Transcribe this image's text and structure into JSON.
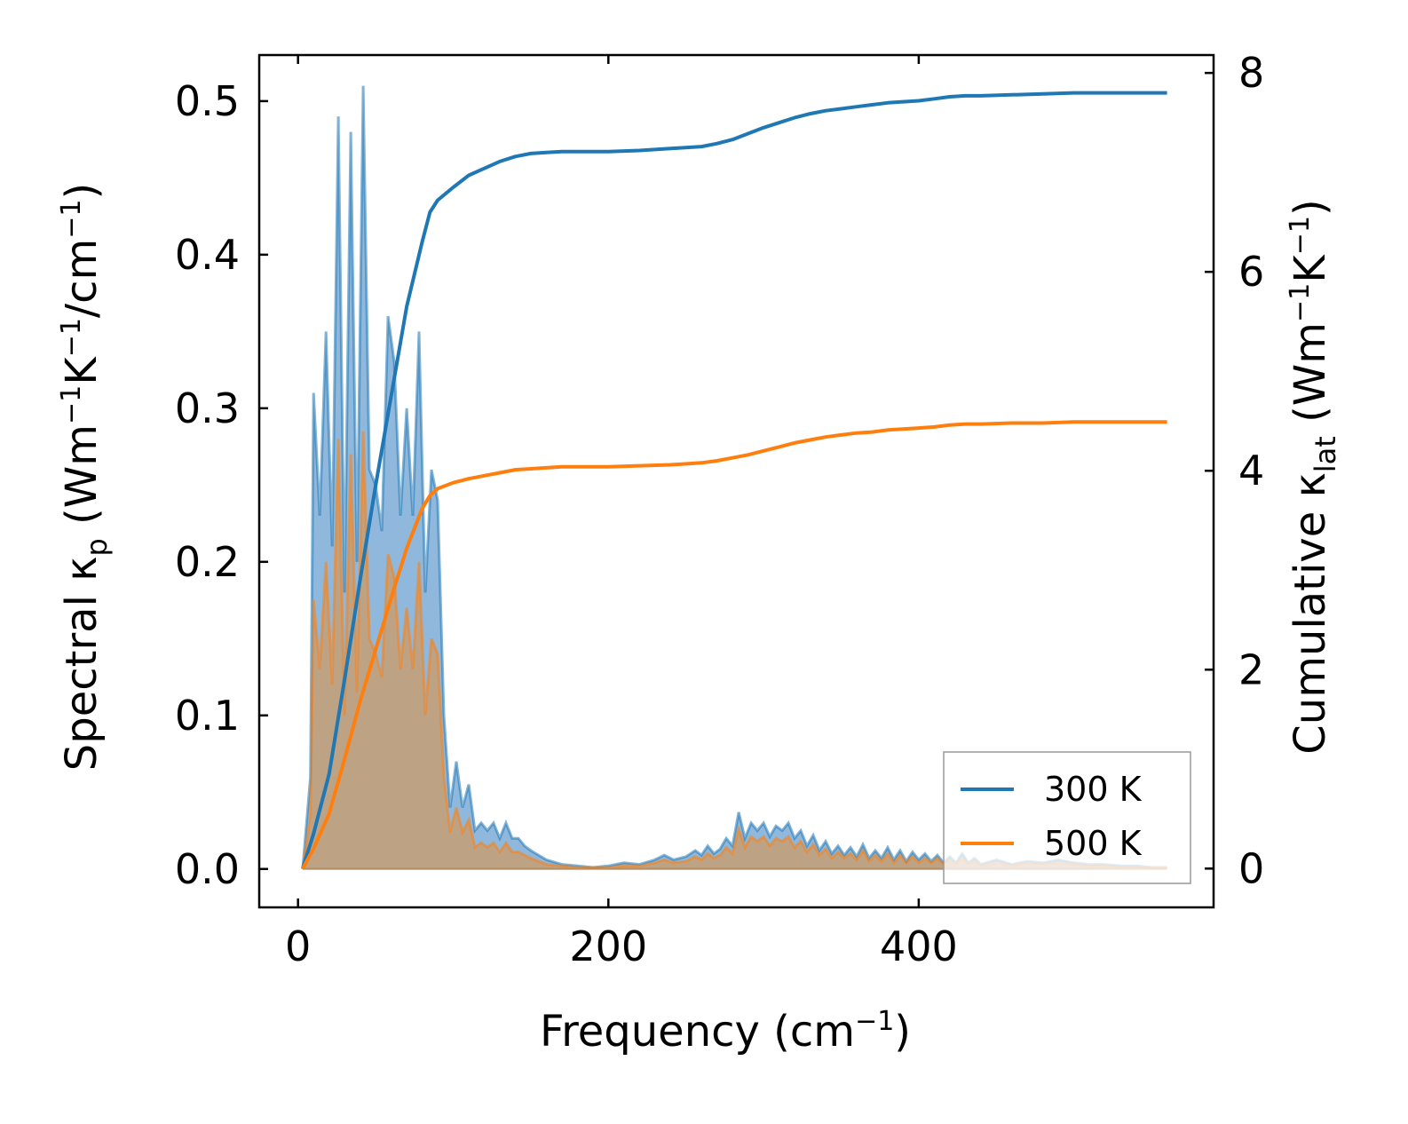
{
  "chart_data": {
    "type": "line",
    "title": "",
    "xlabel": "Frequency (cm⁻¹)",
    "xlabel_parts": {
      "main": "Frequency (cm",
      "sup": "−1",
      "close": ")"
    },
    "ylabel_left": "Spectral κₚ (Wm⁻¹K⁻¹/cm⁻¹)",
    "ylabel_left_parts": {
      "a": "Spectral κ",
      "sub": "p",
      "b": " (Wm",
      "sup1": "−1",
      "c": "K",
      "sup2": "−1",
      "d": "/cm",
      "sup3": "−1",
      "e": ")"
    },
    "ylabel_right": "Cumulative κ_lat (Wm⁻¹K⁻¹)",
    "ylabel_right_parts": {
      "a": "Cumulative κ",
      "sub": "lat",
      "b": " (Wm",
      "sup1": "−1",
      "c": "K",
      "sup2": "−1",
      "d": ")"
    },
    "xlim": [
      -25,
      590
    ],
    "ylim_left": [
      -0.025,
      0.53
    ],
    "ylim_right": [
      -0.39,
      8.18
    ],
    "xticks": [
      0,
      200,
      400
    ],
    "xtick_labels": [
      "0",
      "200",
      "400"
    ],
    "yticks_left": [
      0.0,
      0.1,
      0.2,
      0.3,
      0.4,
      0.5
    ],
    "ytick_labels_left": [
      "0.0",
      "0.1",
      "0.2",
      "0.3",
      "0.4",
      "0.5"
    ],
    "yticks_right": [
      0,
      2,
      4,
      6,
      8
    ],
    "ytick_labels_right": [
      "0",
      "2",
      "4",
      "6",
      "8"
    ],
    "legend": {
      "position": "lower-right",
      "entries": [
        "300 K",
        "500 K"
      ]
    },
    "colors": {
      "s300": "#1f77b4",
      "s500": "#ff7f0e",
      "fill300": "#8fb8dc",
      "fill500": "#c79d74"
    },
    "spectral": [
      {
        "name": "300 K",
        "x": [
          3,
          8,
          10,
          14,
          18,
          22,
          26,
          30,
          34,
          38,
          42,
          46,
          50,
          54,
          58,
          62,
          66,
          70,
          74,
          78,
          82,
          86,
          90,
          94,
          98,
          102,
          106,
          110,
          114,
          118,
          122,
          126,
          130,
          134,
          138,
          142,
          146,
          150,
          160,
          170,
          180,
          190,
          200,
          210,
          220,
          230,
          236,
          242,
          250,
          256,
          260,
          264,
          268,
          272,
          276,
          280,
          284,
          288,
          292,
          296,
          300,
          304,
          308,
          312,
          316,
          320,
          324,
          328,
          332,
          336,
          340,
          344,
          348,
          352,
          356,
          360,
          364,
          368,
          372,
          376,
          380,
          384,
          388,
          392,
          396,
          400,
          404,
          408,
          412,
          416,
          420,
          424,
          428,
          432,
          436,
          440,
          450,
          460,
          470,
          480,
          490,
          500,
          510,
          520,
          530,
          540,
          550,
          560
        ],
        "y": [
          0.0,
          0.06,
          0.31,
          0.23,
          0.35,
          0.21,
          0.49,
          0.18,
          0.48,
          0.2,
          0.51,
          0.26,
          0.25,
          0.22,
          0.36,
          0.33,
          0.23,
          0.3,
          0.23,
          0.35,
          0.18,
          0.26,
          0.24,
          0.1,
          0.04,
          0.07,
          0.04,
          0.055,
          0.025,
          0.03,
          0.025,
          0.03,
          0.02,
          0.03,
          0.02,
          0.02,
          0.015,
          0.012,
          0.006,
          0.003,
          0.002,
          0.001,
          0.002,
          0.004,
          0.003,
          0.006,
          0.009,
          0.006,
          0.008,
          0.012,
          0.009,
          0.015,
          0.01,
          0.013,
          0.02,
          0.015,
          0.037,
          0.02,
          0.03,
          0.025,
          0.03,
          0.021,
          0.028,
          0.025,
          0.03,
          0.02,
          0.025,
          0.015,
          0.022,
          0.012,
          0.018,
          0.01,
          0.015,
          0.009,
          0.014,
          0.008,
          0.016,
          0.007,
          0.012,
          0.007,
          0.014,
          0.006,
          0.012,
          0.005,
          0.011,
          0.006,
          0.01,
          0.005,
          0.009,
          0.004,
          0.008,
          0.004,
          0.01,
          0.004,
          0.007,
          0.003,
          0.006,
          0.003,
          0.005,
          0.004,
          0.006,
          0.004,
          0.003,
          0.003,
          0.002,
          0.002,
          0.001,
          0.001
        ]
      },
      {
        "name": "500 K",
        "x": [
          3,
          8,
          10,
          14,
          18,
          22,
          26,
          30,
          34,
          38,
          42,
          46,
          50,
          54,
          58,
          62,
          66,
          70,
          74,
          78,
          82,
          86,
          90,
          94,
          98,
          102,
          106,
          110,
          114,
          118,
          122,
          126,
          130,
          134,
          138,
          142,
          146,
          150,
          160,
          170,
          180,
          190,
          200,
          210,
          220,
          230,
          236,
          242,
          250,
          256,
          260,
          264,
          268,
          272,
          276,
          280,
          284,
          288,
          292,
          296,
          300,
          304,
          308,
          312,
          316,
          320,
          324,
          328,
          332,
          336,
          340,
          344,
          348,
          352,
          356,
          360,
          364,
          368,
          372,
          376,
          380,
          384,
          388,
          392,
          396,
          400,
          404,
          408,
          412,
          416,
          420,
          424,
          428,
          432,
          436,
          440,
          450,
          460,
          470,
          480,
          490,
          500,
          510,
          520,
          530,
          540,
          550,
          560
        ],
        "y": [
          0.0,
          0.035,
          0.175,
          0.13,
          0.2,
          0.12,
          0.28,
          0.1,
          0.27,
          0.115,
          0.285,
          0.15,
          0.14,
          0.125,
          0.205,
          0.19,
          0.13,
          0.17,
          0.13,
          0.2,
          0.1,
          0.15,
          0.14,
          0.06,
          0.024,
          0.04,
          0.024,
          0.032,
          0.014,
          0.017,
          0.014,
          0.017,
          0.011,
          0.017,
          0.011,
          0.011,
          0.009,
          0.007,
          0.003,
          0.002,
          0.001,
          0.001,
          0.001,
          0.002,
          0.002,
          0.004,
          0.006,
          0.004,
          0.005,
          0.008,
          0.006,
          0.01,
          0.007,
          0.009,
          0.014,
          0.01,
          0.026,
          0.014,
          0.021,
          0.018,
          0.021,
          0.015,
          0.02,
          0.018,
          0.021,
          0.014,
          0.018,
          0.011,
          0.016,
          0.009,
          0.013,
          0.007,
          0.011,
          0.007,
          0.01,
          0.006,
          0.012,
          0.005,
          0.009,
          0.005,
          0.01,
          0.004,
          0.009,
          0.004,
          0.008,
          0.004,
          0.007,
          0.004,
          0.007,
          0.003,
          0.006,
          0.003,
          0.007,
          0.003,
          0.005,
          0.002,
          0.004,
          0.002,
          0.004,
          0.003,
          0.004,
          0.003,
          0.002,
          0.002,
          0.001,
          0.001,
          0.001,
          0.001
        ]
      }
    ],
    "cumulative": [
      {
        "name": "300 K",
        "x": [
          3,
          10,
          20,
          30,
          40,
          50,
          60,
          70,
          80,
          85,
          90,
          100,
          110,
          120,
          130,
          140,
          150,
          160,
          170,
          180,
          200,
          220,
          240,
          260,
          270,
          280,
          290,
          300,
          310,
          320,
          330,
          340,
          350,
          360,
          370,
          380,
          390,
          400,
          410,
          420,
          430,
          440,
          460,
          480,
          500,
          520,
          540,
          560
        ],
        "y": [
          0.0,
          0.35,
          0.95,
          1.9,
          2.9,
          3.85,
          4.75,
          5.65,
          6.3,
          6.6,
          6.72,
          6.85,
          6.97,
          7.04,
          7.11,
          7.16,
          7.19,
          7.2,
          7.21,
          7.21,
          7.21,
          7.22,
          7.24,
          7.26,
          7.29,
          7.33,
          7.39,
          7.45,
          7.5,
          7.55,
          7.59,
          7.62,
          7.64,
          7.66,
          7.68,
          7.7,
          7.71,
          7.72,
          7.74,
          7.76,
          7.77,
          7.77,
          7.78,
          7.79,
          7.8,
          7.8,
          7.8,
          7.8
        ]
      },
      {
        "name": "500 K",
        "x": [
          3,
          10,
          20,
          30,
          40,
          50,
          60,
          70,
          80,
          85,
          90,
          100,
          110,
          120,
          130,
          140,
          150,
          160,
          170,
          180,
          200,
          220,
          240,
          260,
          270,
          280,
          290,
          300,
          310,
          320,
          330,
          340,
          350,
          360,
          370,
          380,
          390,
          400,
          410,
          420,
          430,
          440,
          460,
          480,
          500,
          520,
          540,
          560
        ],
        "y": [
          0.0,
          0.2,
          0.55,
          1.1,
          1.68,
          2.2,
          2.72,
          3.22,
          3.62,
          3.75,
          3.82,
          3.88,
          3.92,
          3.95,
          3.98,
          4.01,
          4.02,
          4.03,
          4.04,
          4.04,
          4.04,
          4.05,
          4.06,
          4.08,
          4.1,
          4.13,
          4.16,
          4.2,
          4.24,
          4.28,
          4.31,
          4.34,
          4.36,
          4.38,
          4.39,
          4.41,
          4.42,
          4.43,
          4.44,
          4.46,
          4.47,
          4.47,
          4.48,
          4.48,
          4.49,
          4.49,
          4.49,
          4.49
        ]
      }
    ]
  }
}
